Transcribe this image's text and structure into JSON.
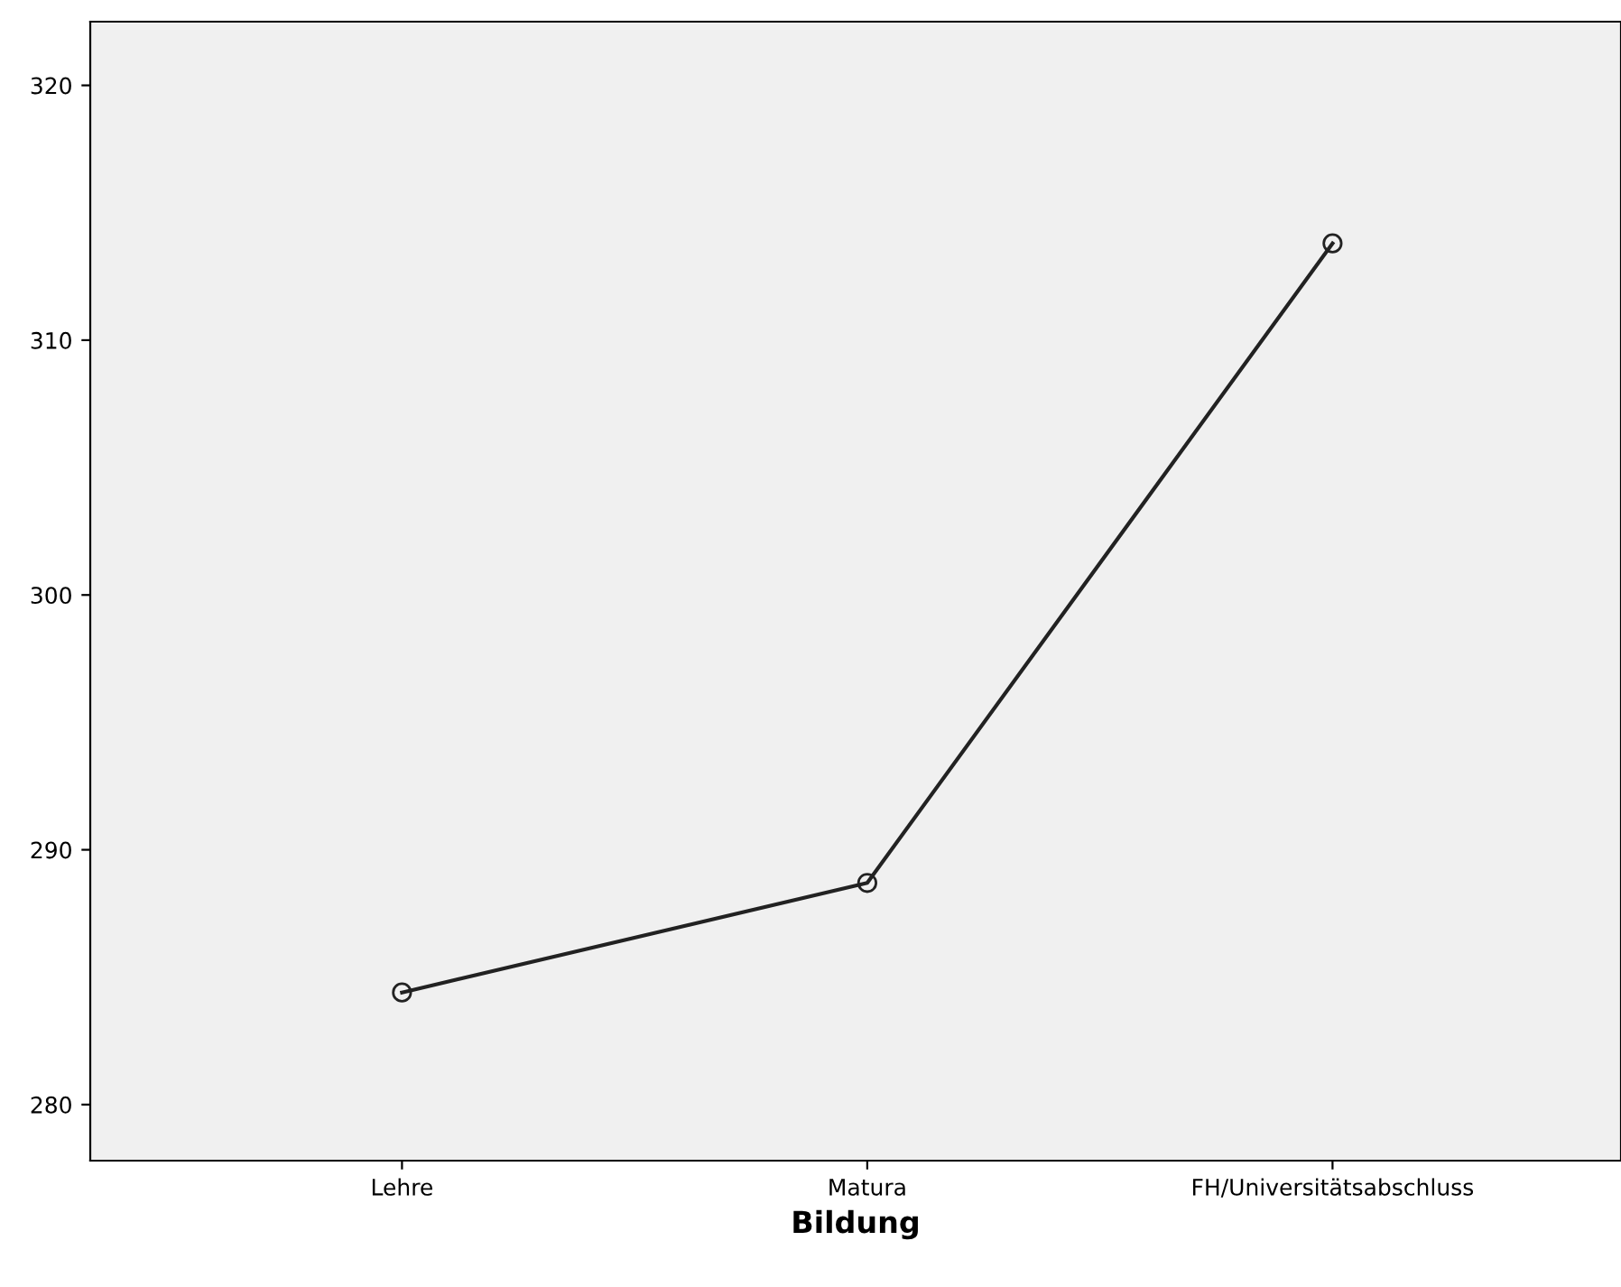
{
  "chart_data": {
    "type": "line",
    "xlabel": "Bildung",
    "categories": [
      "Lehre",
      "Matura",
      "FH/Universitätsabschluss"
    ],
    "series": [
      {
        "color": "#222222",
        "values": [
          284.4,
          288.7,
          313.8
        ]
      }
    ],
    "marker": "circle",
    "line_style": "solid",
    "ylim": [
      277.8,
      322.5
    ],
    "yticks": [
      280,
      290,
      300,
      310,
      320
    ],
    "grid": false,
    "legend": false
  }
}
